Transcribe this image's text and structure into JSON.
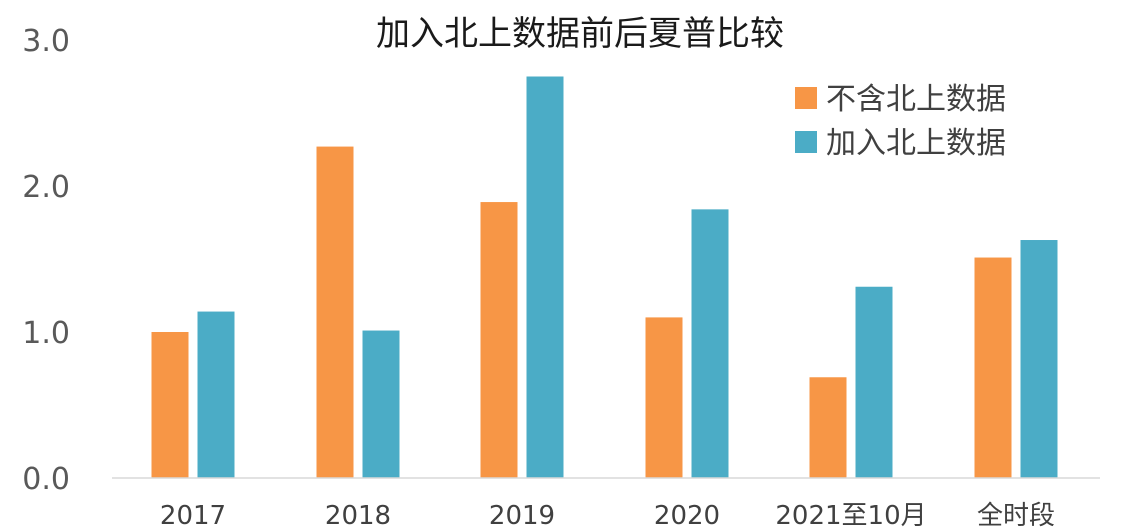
{
  "chart_data": {
    "type": "bar",
    "title": "加入北上数据前后夏普比较",
    "xlabel": "",
    "ylabel": "",
    "categories": [
      "2017",
      "2018",
      "2019",
      "2020",
      "2021至10月",
      "全时段"
    ],
    "series": [
      {
        "name": "不含北上数据",
        "color": "#F79646",
        "values": [
          1.0,
          2.27,
          1.89,
          1.1,
          0.69,
          1.51
        ]
      },
      {
        "name": "加入北上数据",
        "color": "#4BACC6",
        "values": [
          1.14,
          1.01,
          2.75,
          1.84,
          1.31,
          1.63
        ]
      }
    ],
    "ylim": [
      0,
      3
    ],
    "yticks": [
      "0.0",
      "1.0",
      "2.0",
      "3.0"
    ],
    "legend_position": "top-right",
    "grid": false
  }
}
